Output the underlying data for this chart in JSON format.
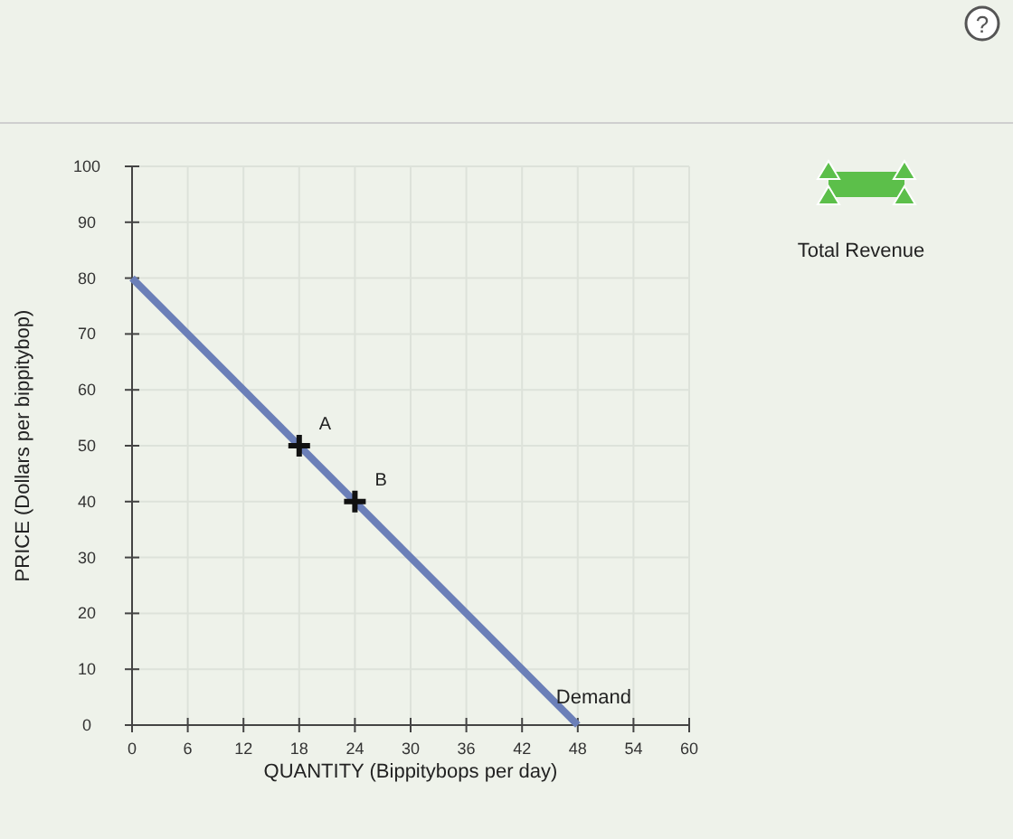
{
  "chart_data": {
    "type": "line",
    "xlabel": "QUANTITY (Bippitybops per day)",
    "ylabel": "PRICE (Dollars per bippitybop)",
    "xlim": [
      0,
      60
    ],
    "xticks": [
      0,
      6,
      12,
      18,
      24,
      30,
      36,
      42,
      48,
      54,
      60
    ],
    "ylim": [
      0,
      100
    ],
    "yticks": [
      0,
      10,
      20,
      30,
      40,
      50,
      60,
      70,
      80,
      90,
      100
    ],
    "grid": true,
    "series": [
      {
        "name": "Demand",
        "color": "#6b7fb8",
        "x": [
          0,
          48
        ],
        "values": [
          80,
          0
        ],
        "marker": "none"
      },
      {
        "type": "scatter",
        "color": "#111111",
        "x": [
          18,
          24
        ],
        "values": [
          50,
          40
        ],
        "marker": "cross"
      }
    ],
    "annotations": [
      {
        "text": "A",
        "x": 18,
        "y": 50
      },
      {
        "text": "B",
        "x": 24,
        "y": 40
      },
      "Total Revenue",
      "?"
    ]
  }
}
